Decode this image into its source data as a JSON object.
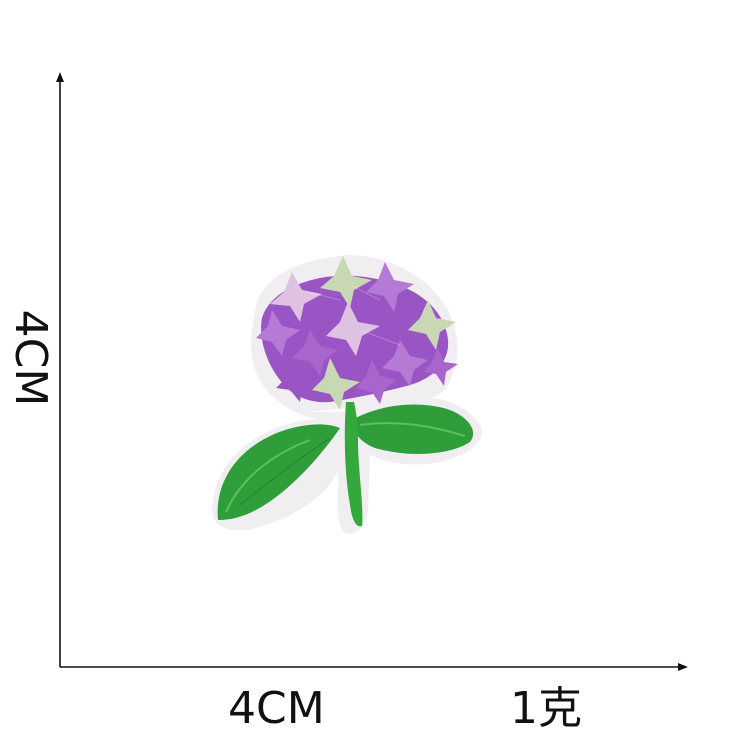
{
  "labels": {
    "width": "4CM",
    "height": "4CM",
    "weight": "1克"
  },
  "colors": {
    "axis": "#111111",
    "background": "#ffffff",
    "patch_backing": "#f1eef2",
    "petal_dark": "#9a55c4",
    "petal_mid": "#b57ad6",
    "petal_pink": "#dfc2e2",
    "petal_sage": "#c9d8b4",
    "leaf_green": "#2f9e3a",
    "leaf_light": "#4cbf4a"
  },
  "image": {
    "subject": "hydrangea-embroidered-patch"
  }
}
